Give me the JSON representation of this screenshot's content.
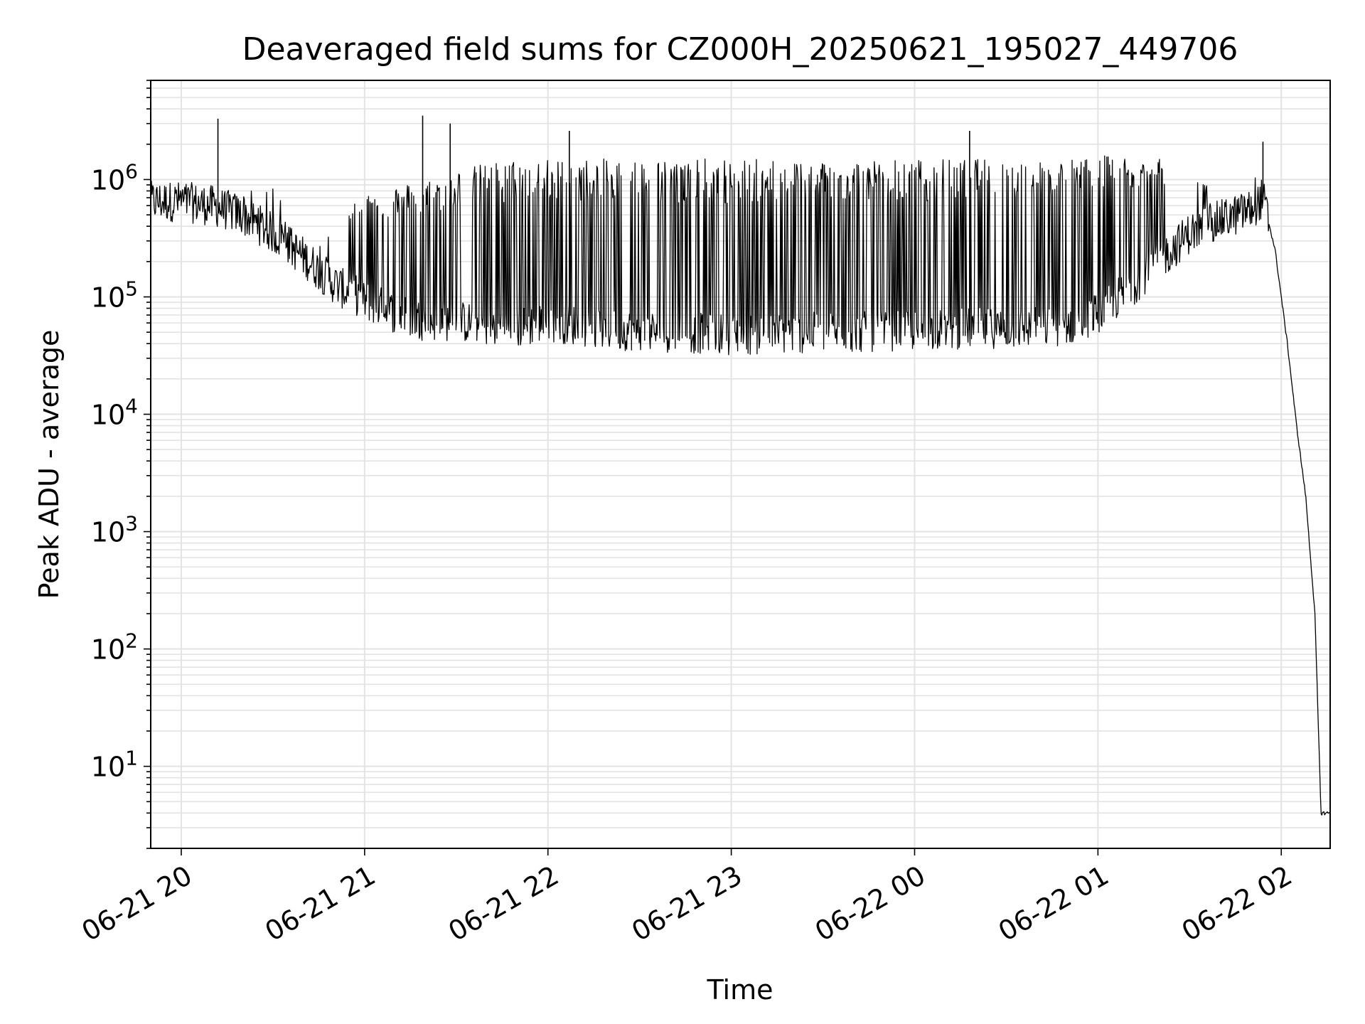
{
  "chart_data": {
    "type": "line",
    "title": "Deaveraged field sums for CZ000H_20250621_195027_449706",
    "xlabel": "Time",
    "ylabel": "Peak ADU - average",
    "y_scale": "log",
    "ylim": [
      2,
      7000000.0
    ],
    "xlim": [
      "2025-06-21 19:50",
      "2025-06-22 02:16"
    ],
    "grid": true,
    "line_color": "#000000",
    "x_ticks": [
      {
        "value": "2025-06-21 20:00",
        "label": "06-21 20"
      },
      {
        "value": "2025-06-21 21:00",
        "label": "06-21 21"
      },
      {
        "value": "2025-06-21 22:00",
        "label": "06-21 22"
      },
      {
        "value": "2025-06-21 23:00",
        "label": "06-21 23"
      },
      {
        "value": "2025-06-22 00:00",
        "label": "06-22 00"
      },
      {
        "value": "2025-06-22 01:00",
        "label": "06-22 01"
      },
      {
        "value": "2025-06-22 02:00",
        "label": "06-22 02"
      }
    ],
    "y_ticks": [
      {
        "value": 10,
        "base": "10",
        "exp": "1"
      },
      {
        "value": 100,
        "base": "10",
        "exp": "2"
      },
      {
        "value": 1000,
        "base": "10",
        "exp": "3"
      },
      {
        "value": 10000,
        "base": "10",
        "exp": "4"
      },
      {
        "value": 100000,
        "base": "10",
        "exp": "5"
      },
      {
        "value": 1000000,
        "base": "10",
        "exp": "6"
      }
    ],
    "series": [
      {
        "x": [
          "2025-06-21 19:50",
          "2025-06-21 20:00",
          "2025-06-21 20:10",
          "2025-06-21 20:20",
          "2025-06-21 20:30",
          "2025-06-21 20:40",
          "2025-06-21 20:50",
          "2025-06-21 21:00",
          "2025-06-21 21:10",
          "2025-06-21 21:20",
          "2025-06-21 21:30",
          "2025-06-21 21:40",
          "2025-06-21 21:50",
          "2025-06-21 22:00",
          "2025-06-21 22:10",
          "2025-06-21 22:20",
          "2025-06-21 22:30",
          "2025-06-21 22:40",
          "2025-06-21 22:50",
          "2025-06-21 23:00",
          "2025-06-21 23:10",
          "2025-06-21 23:20",
          "2025-06-21 23:30",
          "2025-06-21 23:40",
          "2025-06-21 23:50",
          "2025-06-22 00:00",
          "2025-06-22 00:10",
          "2025-06-22 00:20",
          "2025-06-22 00:30",
          "2025-06-22 00:40",
          "2025-06-22 00:50",
          "2025-06-22 01:00",
          "2025-06-22 01:10",
          "2025-06-22 01:20",
          "2025-06-22 01:30",
          "2025-06-22 01:40",
          "2025-06-22 01:50",
          "2025-06-22 01:54",
          "2025-06-22 01:58",
          "2025-06-22 02:02",
          "2025-06-22 02:05",
          "2025-06-22 02:08",
          "2025-06-22 02:11",
          "2025-06-22 02:13",
          "2025-06-22 02:14",
          "2025-06-22 02:16"
        ],
        "base": [
          650000,
          650000,
          600000,
          500000,
          350000,
          220000,
          130000,
          90000,
          70000,
          60000,
          60000,
          55000,
          52000,
          60000,
          55000,
          50000,
          50000,
          48000,
          47000,
          46000,
          46000,
          47000,
          48000,
          48000,
          49000,
          50000,
          51000,
          52000,
          52000,
          53000,
          55000,
          70000,
          110000,
          200000,
          350000,
          450000,
          550000,
          700000,
          250000,
          40000,
          8000,
          2000,
          200,
          4,
          4,
          4
        ],
        "peak": [
          900000,
          800000,
          750000,
          700000,
          1100000,
          700000,
          600000,
          800000,
          900000,
          1000000,
          1200000,
          1400000,
          1500000,
          1500000,
          1500000,
          1500000,
          1500000,
          1500000,
          1500000,
          1500000,
          1500000,
          1500000,
          1500000,
          1500000,
          1500000,
          1500000,
          1500000,
          1500000,
          1500000,
          1500000,
          1500000,
          1600000,
          1600000,
          1500000,
          1000000,
          800000,
          700000,
          2000000,
          250000,
          40000,
          8000,
          2000,
          200,
          4,
          4,
          4
        ]
      }
    ],
    "spikes": [
      {
        "x": "2025-06-21 20:12",
        "y": 3300000
      },
      {
        "x": "2025-06-21 21:19",
        "y": 3500000
      },
      {
        "x": "2025-06-21 21:28",
        "y": 3000000
      },
      {
        "x": "2025-06-21 22:07",
        "y": 2600000
      },
      {
        "x": "2025-06-22 00:18",
        "y": 2600000
      },
      {
        "x": "2025-06-22 01:54",
        "y": 2100000
      }
    ]
  }
}
